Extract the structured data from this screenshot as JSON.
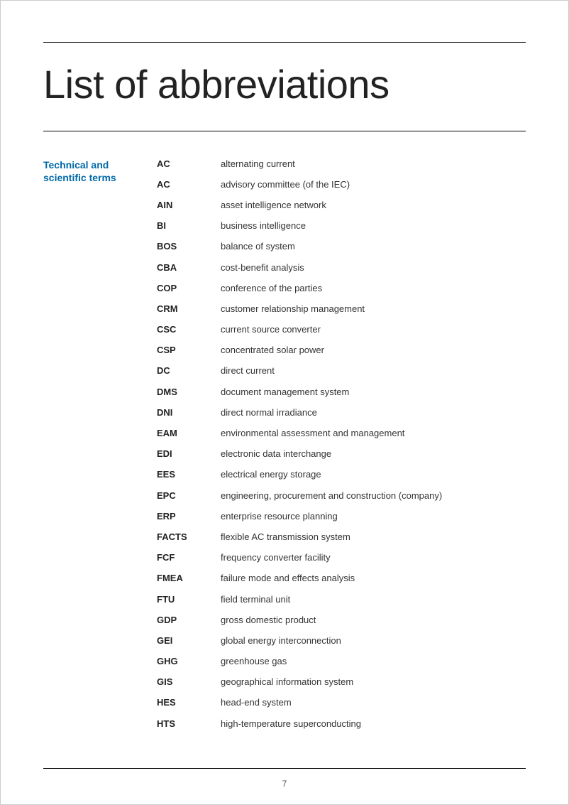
{
  "page": {
    "title": "List of abbreviations",
    "section_label": "Technical and scientific terms",
    "page_number": "7",
    "colors": {
      "section_label": "#0069aa",
      "rule": "#000000",
      "text": "#333333",
      "background": "#ffffff"
    },
    "typography": {
      "title_fontsize": 56,
      "title_weight": 100,
      "body_fontsize": 13,
      "section_label_fontsize": 14
    }
  },
  "terms": [
    {
      "abbr": "AC",
      "defn": "alternating current"
    },
    {
      "abbr": "AC",
      "defn": "advisory committee (of the IEC)"
    },
    {
      "abbr": "AIN",
      "defn": "asset intelligence network"
    },
    {
      "abbr": "BI",
      "defn": "business intelligence"
    },
    {
      "abbr": "BOS",
      "defn": "balance of system"
    },
    {
      "abbr": "CBA",
      "defn": "cost-benefit analysis"
    },
    {
      "abbr": "COP",
      "defn": "conference of the parties"
    },
    {
      "abbr": "CRM",
      "defn": "customer relationship management"
    },
    {
      "abbr": "CSC",
      "defn": "current source converter"
    },
    {
      "abbr": "CSP",
      "defn": "concentrated solar power"
    },
    {
      "abbr": "DC",
      "defn": "direct current"
    },
    {
      "abbr": "DMS",
      "defn": "document management system"
    },
    {
      "abbr": "DNI",
      "defn": "direct normal irradiance"
    },
    {
      "abbr": "EAM",
      "defn": "environmental assessment and management"
    },
    {
      "abbr": "EDI",
      "defn": "electronic data interchange"
    },
    {
      "abbr": "EES",
      "defn": "electrical energy storage"
    },
    {
      "abbr": "EPC",
      "defn": "engineering, procurement and construction (company)"
    },
    {
      "abbr": "ERP",
      "defn": "enterprise resource planning"
    },
    {
      "abbr": "FACTS",
      "defn": "flexible AC transmission system"
    },
    {
      "abbr": "FCF",
      "defn": "frequency converter facility"
    },
    {
      "abbr": "FMEA",
      "defn": "failure mode and effects analysis"
    },
    {
      "abbr": "FTU",
      "defn": "field terminal unit"
    },
    {
      "abbr": "GDP",
      "defn": "gross domestic product"
    },
    {
      "abbr": "GEI",
      "defn": "global energy interconnection"
    },
    {
      "abbr": "GHG",
      "defn": "greenhouse gas"
    },
    {
      "abbr": "GIS",
      "defn": "geographical information system"
    },
    {
      "abbr": "HES",
      "defn": "head-end system"
    },
    {
      "abbr": "HTS",
      "defn": "high-temperature superconducting"
    }
  ]
}
